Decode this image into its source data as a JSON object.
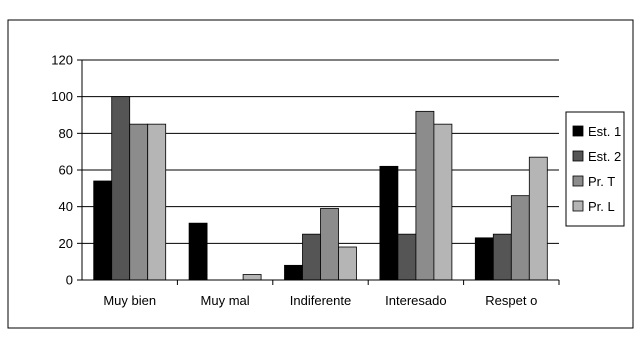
{
  "chart_data": {
    "type": "bar",
    "title": "",
    "xlabel": "",
    "ylabel": "",
    "categories": [
      "Muy bien",
      "Muy mal",
      "Indiferente",
      "Interesado",
      "Respet o"
    ],
    "series": [
      {
        "name": "Est. 1",
        "color": "#000000",
        "values": [
          54,
          31,
          8,
          62,
          23
        ]
      },
      {
        "name": "Est. 2",
        "color": "#555555",
        "values": [
          100,
          0,
          25,
          25,
          25
        ]
      },
      {
        "name": "Pr. T",
        "color": "#8c8c8c",
        "values": [
          85,
          0,
          39,
          92,
          46
        ]
      },
      {
        "name": "Pr. L",
        "color": "#b5b5b5",
        "values": [
          85,
          3,
          18,
          85,
          67
        ]
      }
    ],
    "ylim": [
      0,
      120
    ],
    "yticks": [
      0,
      20,
      40,
      60,
      80,
      100,
      120
    ],
    "grid": true,
    "legend": "right"
  }
}
